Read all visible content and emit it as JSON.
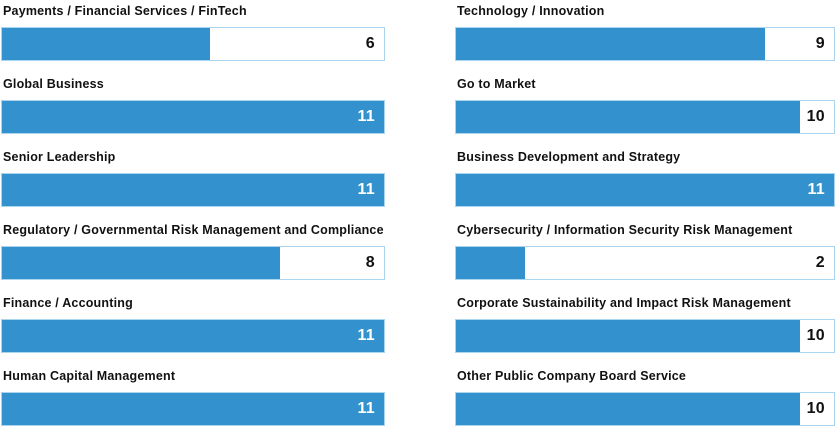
{
  "chart_data": {
    "type": "bar",
    "orientation": "horizontal",
    "max_value": 11,
    "grid": false,
    "legend": false,
    "colors": {
      "bar_fill": "#3391ce",
      "track_background": "#ffffff",
      "track_border": "#abd4ee",
      "value_on_fill": "#ffffff",
      "value_on_track": "#111111",
      "label_text": "#111111"
    },
    "columns": [
      {
        "items": [
          {
            "label": "Payments / Financial Services / FinTech",
            "value": 6
          },
          {
            "label": "Global Business",
            "value": 11
          },
          {
            "label": "Senior Leadership",
            "value": 11
          },
          {
            "label": "Regulatory / Governmental Risk Management and Compliance",
            "value": 8
          },
          {
            "label": "Finance / Accounting",
            "value": 11
          },
          {
            "label": "Human Capital Management",
            "value": 11
          }
        ]
      },
      {
        "items": [
          {
            "label": "Technology / Innovation",
            "value": 9
          },
          {
            "label": "Go to Market",
            "value": 10
          },
          {
            "label": "Business Development and Strategy",
            "value": 11
          },
          {
            "label": "Cybersecurity / Information Security Risk Management",
            "value": 2
          },
          {
            "label": "Corporate Sustainability and Impact Risk Management",
            "value": 10
          },
          {
            "label": "Other Public Company Board Service",
            "value": 10
          }
        ]
      }
    ]
  }
}
